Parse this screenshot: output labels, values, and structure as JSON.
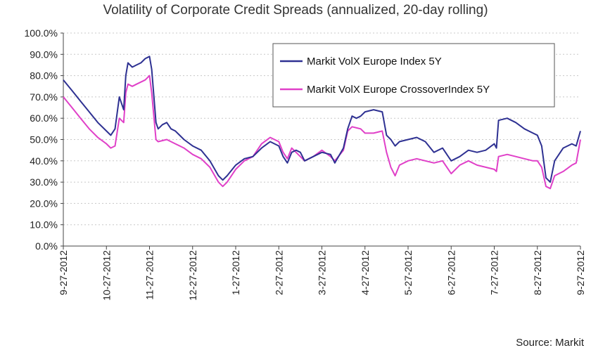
{
  "chart_data": {
    "type": "line",
    "title": "Volatility of Corporate Credit Spreads (annualized, 20-day rolling)",
    "xlabel": "",
    "ylabel": "",
    "ylim": [
      0,
      100
    ],
    "y_ticks": [
      "0.0%",
      "10.0%",
      "20.0%",
      "30.0%",
      "40.0%",
      "50.0%",
      "60.0%",
      "70.0%",
      "80.0%",
      "90.0%",
      "100.0%"
    ],
    "x_ticks": [
      "9-27-2012",
      "10-27-2012",
      "11-27-2012",
      "12-27-2012",
      "1-27-2012",
      "2-27-2012",
      "3-27-2012",
      "4-27-2012",
      "5-27-2012",
      "6-27-2012",
      "7-27-2012",
      "8-27-2012",
      "9-27-2012"
    ],
    "grid": true,
    "legend_position": "top-right",
    "series": [
      {
        "name": "Markit VolX Europe Index 5Y",
        "color": "#2e3192",
        "points": [
          [
            0,
            78
          ],
          [
            0.2,
            73
          ],
          [
            0.4,
            68
          ],
          [
            0.6,
            63
          ],
          [
            0.8,
            58
          ],
          [
            1.0,
            54
          ],
          [
            1.1,
            52
          ],
          [
            1.2,
            55
          ],
          [
            1.3,
            70
          ],
          [
            1.4,
            64
          ],
          [
            1.45,
            80
          ],
          [
            1.5,
            86
          ],
          [
            1.6,
            84
          ],
          [
            1.7,
            85
          ],
          [
            1.8,
            86
          ],
          [
            1.9,
            88
          ],
          [
            2.0,
            89
          ],
          [
            2.05,
            83
          ],
          [
            2.15,
            58
          ],
          [
            2.2,
            55
          ],
          [
            2.3,
            57
          ],
          [
            2.4,
            58
          ],
          [
            2.5,
            55
          ],
          [
            2.6,
            54
          ],
          [
            2.8,
            50
          ],
          [
            3.0,
            47
          ],
          [
            3.2,
            45
          ],
          [
            3.4,
            40
          ],
          [
            3.6,
            33
          ],
          [
            3.7,
            31
          ],
          [
            3.8,
            33
          ],
          [
            4.0,
            38
          ],
          [
            4.2,
            41
          ],
          [
            4.4,
            42
          ],
          [
            4.6,
            46
          ],
          [
            4.8,
            49
          ],
          [
            5.0,
            47
          ],
          [
            5.1,
            42
          ],
          [
            5.2,
            39
          ],
          [
            5.3,
            44
          ],
          [
            5.4,
            45
          ],
          [
            5.5,
            44
          ],
          [
            5.6,
            40
          ],
          [
            5.8,
            42
          ],
          [
            6.0,
            44
          ],
          [
            6.2,
            43
          ],
          [
            6.3,
            39
          ],
          [
            6.5,
            46
          ],
          [
            6.6,
            55
          ],
          [
            6.7,
            61
          ],
          [
            6.8,
            60
          ],
          [
            6.9,
            61
          ],
          [
            7.0,
            63
          ],
          [
            7.2,
            64
          ],
          [
            7.4,
            63
          ],
          [
            7.5,
            52
          ],
          [
            7.6,
            50
          ],
          [
            7.7,
            47
          ],
          [
            7.8,
            49
          ],
          [
            8.0,
            50
          ],
          [
            8.2,
            51
          ],
          [
            8.4,
            49
          ],
          [
            8.6,
            44
          ],
          [
            8.8,
            46
          ],
          [
            9.0,
            40
          ],
          [
            9.2,
            42
          ],
          [
            9.4,
            45
          ],
          [
            9.6,
            44
          ],
          [
            9.8,
            45
          ],
          [
            10.0,
            48
          ],
          [
            10.05,
            46
          ],
          [
            10.1,
            59
          ],
          [
            10.3,
            60
          ],
          [
            10.5,
            58
          ],
          [
            10.7,
            55
          ],
          [
            10.9,
            53
          ],
          [
            11.0,
            52
          ],
          [
            11.1,
            47
          ],
          [
            11.2,
            32
          ],
          [
            11.3,
            30
          ],
          [
            11.4,
            40
          ],
          [
            11.6,
            46
          ],
          [
            11.8,
            48
          ],
          [
            11.9,
            47
          ],
          [
            12.0,
            54
          ]
        ]
      },
      {
        "name": "Markit VolX Europe CrossoverIndex 5Y",
        "color": "#e040c8",
        "points": [
          [
            0,
            70
          ],
          [
            0.2,
            65
          ],
          [
            0.4,
            60
          ],
          [
            0.6,
            55
          ],
          [
            0.8,
            51
          ],
          [
            1.0,
            48
          ],
          [
            1.1,
            46
          ],
          [
            1.2,
            47
          ],
          [
            1.3,
            60
          ],
          [
            1.4,
            58
          ],
          [
            1.45,
            72
          ],
          [
            1.5,
            76
          ],
          [
            1.6,
            75
          ],
          [
            1.7,
            76
          ],
          [
            1.8,
            77
          ],
          [
            1.9,
            78
          ],
          [
            2.0,
            80
          ],
          [
            2.05,
            72
          ],
          [
            2.15,
            50
          ],
          [
            2.2,
            49
          ],
          [
            2.4,
            50
          ],
          [
            2.6,
            48
          ],
          [
            2.8,
            46
          ],
          [
            3.0,
            43
          ],
          [
            3.2,
            41
          ],
          [
            3.4,
            37
          ],
          [
            3.6,
            30
          ],
          [
            3.7,
            28
          ],
          [
            3.8,
            30
          ],
          [
            4.0,
            36
          ],
          [
            4.2,
            40
          ],
          [
            4.4,
            42
          ],
          [
            4.6,
            48
          ],
          [
            4.8,
            51
          ],
          [
            5.0,
            49
          ],
          [
            5.1,
            44
          ],
          [
            5.2,
            41
          ],
          [
            5.3,
            46
          ],
          [
            5.4,
            44
          ],
          [
            5.6,
            40
          ],
          [
            5.8,
            42
          ],
          [
            6.0,
            45
          ],
          [
            6.2,
            42
          ],
          [
            6.3,
            40
          ],
          [
            6.5,
            45
          ],
          [
            6.6,
            54
          ],
          [
            6.7,
            56
          ],
          [
            6.9,
            55
          ],
          [
            7.0,
            53
          ],
          [
            7.2,
            53
          ],
          [
            7.4,
            54
          ],
          [
            7.5,
            44
          ],
          [
            7.6,
            37
          ],
          [
            7.7,
            33
          ],
          [
            7.8,
            38
          ],
          [
            8.0,
            40
          ],
          [
            8.2,
            41
          ],
          [
            8.4,
            40
          ],
          [
            8.6,
            39
          ],
          [
            8.8,
            40
          ],
          [
            9.0,
            34
          ],
          [
            9.2,
            38
          ],
          [
            9.4,
            40
          ],
          [
            9.6,
            38
          ],
          [
            9.8,
            37
          ],
          [
            10.0,
            36
          ],
          [
            10.05,
            35
          ],
          [
            10.1,
            42
          ],
          [
            10.3,
            43
          ],
          [
            10.5,
            42
          ],
          [
            10.7,
            41
          ],
          [
            10.9,
            40
          ],
          [
            11.0,
            40
          ],
          [
            11.1,
            37
          ],
          [
            11.2,
            28
          ],
          [
            11.3,
            27
          ],
          [
            11.4,
            33
          ],
          [
            11.6,
            35
          ],
          [
            11.8,
            38
          ],
          [
            11.9,
            39
          ],
          [
            12.0,
            50
          ]
        ]
      }
    ]
  },
  "source_note": "Source: Markit"
}
